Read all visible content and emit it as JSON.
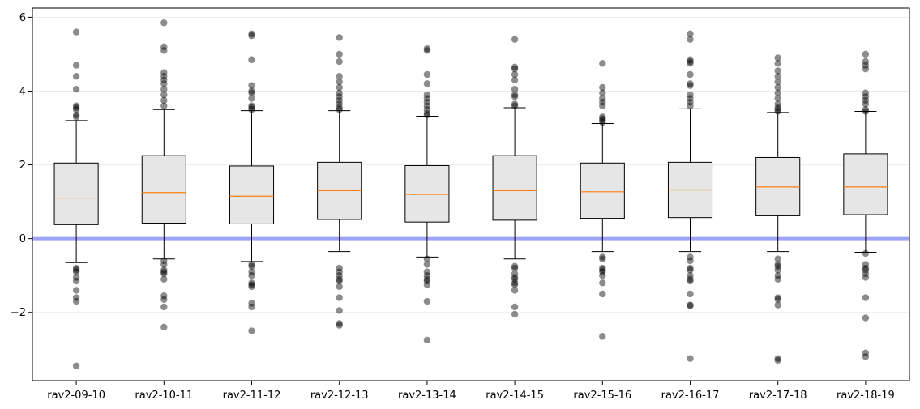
{
  "chart_data": {
    "type": "box",
    "categories": [
      "rav2-09-10",
      "rav2-10-11",
      "rav2-11-12",
      "rav2-12-13",
      "rav2-13-14",
      "rav2-14-15",
      "rav2-15-16",
      "rav2-16-17",
      "rav2-17-18",
      "rav2-18-19"
    ],
    "boxes": [
      {
        "q1": 0.38,
        "median": 1.1,
        "q3": 2.05,
        "whisker_low": -0.65,
        "whisker_high": 3.2,
        "outliers": [
          5.6,
          4.7,
          4.4,
          4.05,
          3.6,
          3.55,
          3.5,
          3.35,
          3.3,
          -0.8,
          -0.85,
          -0.9,
          -1.05,
          -1.15,
          -1.4,
          -1.6,
          -1.7,
          -3.45
        ]
      },
      {
        "q1": 0.42,
        "median": 1.25,
        "q3": 2.25,
        "whisker_low": -0.55,
        "whisker_high": 3.5,
        "outliers": [
          5.85,
          5.2,
          5.1,
          4.5,
          4.4,
          4.3,
          4.2,
          4.05,
          3.9,
          3.75,
          3.6,
          -0.6,
          -0.7,
          -0.85,
          -0.9,
          -0.95,
          -1.1,
          -1.55,
          -1.65,
          -1.85,
          -2.4
        ]
      },
      {
        "q1": 0.4,
        "median": 1.15,
        "q3": 1.97,
        "whisker_low": -0.62,
        "whisker_high": 3.47,
        "outliers": [
          5.55,
          5.5,
          4.85,
          4.15,
          4.0,
          3.95,
          3.8,
          3.6,
          3.55,
          3.5,
          -0.7,
          -0.75,
          -0.9,
          -1.0,
          -1.2,
          -1.25,
          -1.3,
          -1.75,
          -1.85,
          -2.5
        ]
      },
      {
        "q1": 0.52,
        "median": 1.3,
        "q3": 2.07,
        "whisker_low": -0.35,
        "whisker_high": 3.47,
        "outliers": [
          5.45,
          5.0,
          4.8,
          4.4,
          4.25,
          4.1,
          3.95,
          3.85,
          3.75,
          3.65,
          3.55,
          3.5,
          -0.8,
          -0.9,
          -1.0,
          -1.1,
          -1.15,
          -1.3,
          -1.6,
          -1.95,
          -2.3,
          -2.35
        ]
      },
      {
        "q1": 0.45,
        "median": 1.2,
        "q3": 1.98,
        "whisker_low": -0.5,
        "whisker_high": 3.32,
        "outliers": [
          5.15,
          5.1,
          4.45,
          4.2,
          3.9,
          3.8,
          3.7,
          3.6,
          3.5,
          3.4,
          3.35,
          -0.55,
          -0.7,
          -0.9,
          -1.0,
          -1.1,
          -1.15,
          -1.25,
          -1.7,
          -2.75
        ]
      },
      {
        "q1": 0.5,
        "median": 1.3,
        "q3": 2.25,
        "whisker_low": -0.55,
        "whisker_high": 3.55,
        "outliers": [
          5.4,
          4.65,
          4.6,
          4.45,
          4.3,
          4.05,
          3.9,
          3.85,
          3.65,
          3.6,
          -0.75,
          -0.8,
          -0.95,
          -1.05,
          -1.1,
          -1.2,
          -1.25,
          -1.4,
          -1.85,
          -2.05
        ]
      },
      {
        "q1": 0.55,
        "median": 1.27,
        "q3": 2.05,
        "whisker_low": -0.35,
        "whisker_high": 3.12,
        "outliers": [
          4.75,
          4.1,
          3.95,
          3.8,
          3.7,
          3.6,
          3.3,
          3.25,
          3.2,
          3.15,
          -0.5,
          -0.55,
          -0.8,
          -0.85,
          -0.9,
          -1.0,
          -1.2,
          -1.5,
          -2.65
        ]
      },
      {
        "q1": 0.57,
        "median": 1.32,
        "q3": 2.07,
        "whisker_low": -0.35,
        "whisker_high": 3.52,
        "outliers": [
          5.55,
          5.4,
          4.85,
          4.8,
          4.75,
          4.45,
          4.2,
          4.15,
          3.9,
          3.8,
          3.7,
          3.6,
          -0.5,
          -0.6,
          -0.8,
          -0.85,
          -1.0,
          -1.1,
          -1.15,
          -1.5,
          -1.8,
          -1.82,
          -3.25
        ]
      },
      {
        "q1": 0.62,
        "median": 1.4,
        "q3": 2.2,
        "whisker_low": -0.35,
        "whisker_high": 3.42,
        "outliers": [
          4.9,
          4.75,
          4.55,
          4.4,
          4.25,
          4.1,
          3.95,
          3.8,
          3.65,
          3.55,
          3.5,
          3.45,
          -0.55,
          -0.7,
          -0.75,
          -0.85,
          -1.0,
          -1.1,
          -1.6,
          -1.65,
          -1.8,
          -3.25,
          -3.3
        ]
      },
      {
        "q1": 0.65,
        "median": 1.4,
        "q3": 2.3,
        "whisker_low": -0.37,
        "whisker_high": 3.45,
        "outliers": [
          5.0,
          4.8,
          4.7,
          4.6,
          3.95,
          3.85,
          3.75,
          3.65,
          3.5,
          3.45,
          -0.4,
          -0.7,
          -0.8,
          -0.85,
          -0.95,
          -1.05,
          -1.6,
          -2.15,
          -3.1,
          -3.2
        ]
      }
    ],
    "ylim": [
      -3.85,
      6.25
    ],
    "yticks": [
      -2,
      0,
      2,
      4,
      6
    ],
    "ytick_labels": [
      "−2",
      "0",
      "2",
      "4",
      "6"
    ],
    "reference_line_y": 0,
    "grid": "horizontal",
    "colors": {
      "box_fill": "#e6e6e6",
      "box_edge": "#000000",
      "median": "#ff7f0e",
      "outlier": "#000000",
      "reference_line": "#9da4f5",
      "grid": "#ebebeb"
    }
  }
}
